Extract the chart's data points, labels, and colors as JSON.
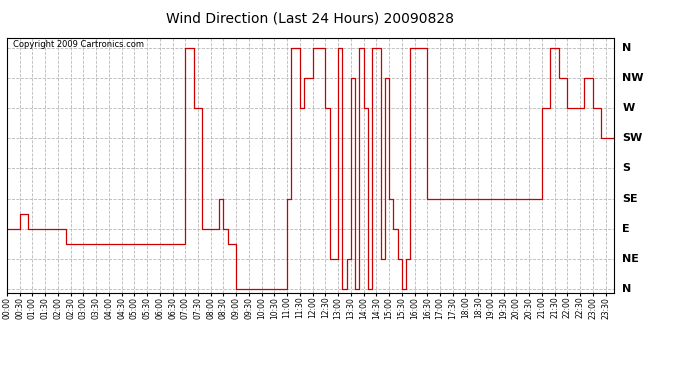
{
  "title": "Wind Direction (Last 24 Hours) 20090828",
  "copyright": "Copyright 2009 Cartronics.com",
  "line_color": "#cc0000",
  "bg_color": "#ffffff",
  "grid_color": "#b0b0b0",
  "ytick_vals": [
    0,
    45,
    90,
    135,
    180,
    225,
    270,
    315,
    360
  ],
  "ylabels": [
    "N",
    "NE",
    "E",
    "SE",
    "S",
    "SW",
    "W",
    "NW",
    "N"
  ],
  "ylim": [
    -5,
    375
  ],
  "wind_values": [
    90,
    90,
    90,
    112,
    112,
    90,
    90,
    90,
    90,
    90,
    90,
    90,
    90,
    90,
    67,
    67,
    67,
    67,
    67,
    67,
    67,
    67,
    67,
    67,
    67,
    67,
    67,
    67,
    67,
    67,
    67,
    67,
    67,
    67,
    67,
    67,
    67,
    67,
    67,
    67,
    67,
    67,
    360,
    360,
    270,
    270,
    90,
    90,
    90,
    90,
    135,
    90,
    67,
    67,
    0,
    0,
    0,
    0,
    0,
    0,
    0,
    0,
    0,
    0,
    0,
    0,
    135,
    360,
    360,
    270,
    315,
    315,
    360,
    360,
    360,
    270,
    45,
    45,
    360,
    0,
    45,
    315,
    0,
    360,
    270,
    0,
    360,
    360,
    45,
    315,
    135,
    90,
    45,
    0,
    45,
    360,
    360,
    360,
    360,
    135,
    135,
    135,
    135,
    135,
    135,
    135,
    135,
    135,
    135,
    135,
    135,
    135,
    135,
    135,
    135,
    135,
    135,
    135,
    135,
    135,
    135,
    135,
    135,
    135,
    135,
    135,
    270,
    270,
    360,
    360,
    315,
    315,
    270,
    270,
    270,
    270,
    315,
    315,
    270,
    270,
    225,
    225,
    225,
    225
  ]
}
